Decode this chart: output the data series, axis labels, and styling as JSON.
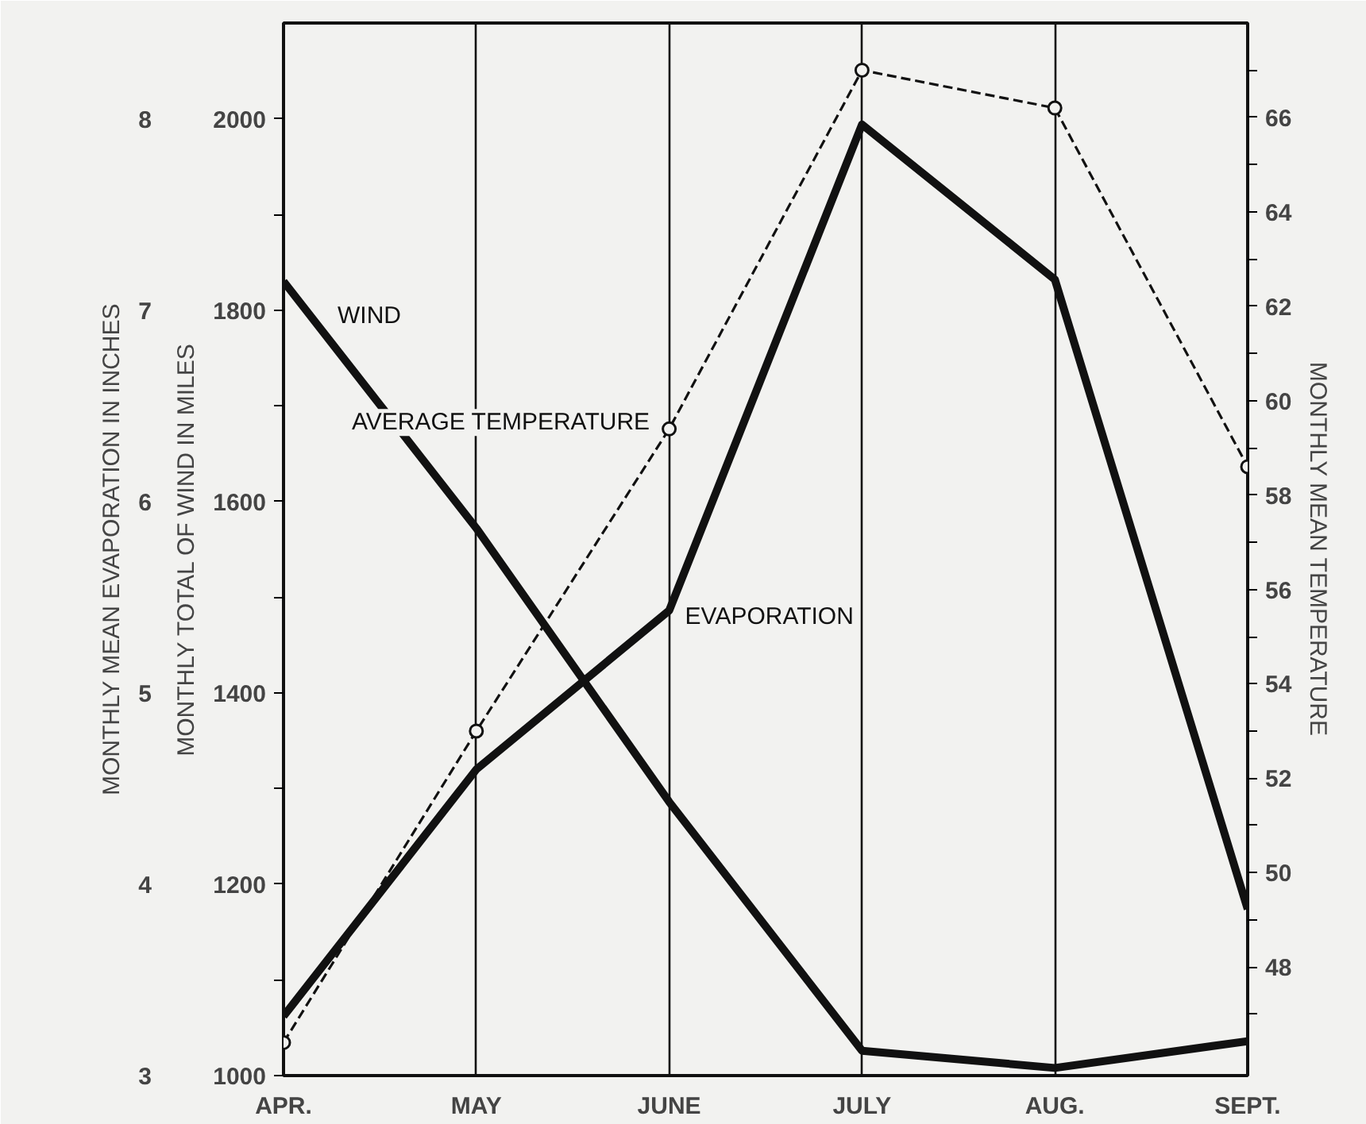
{
  "chart_data": {
    "type": "line",
    "categories": [
      "APR.",
      "MAY",
      "JUNE",
      "JULY",
      "AUG.",
      "SEPT."
    ],
    "ylabel": "MONTHLY TOTAL OF WIND IN MILES",
    "y2label": "MONTHLY MEAN TEMPERATURE",
    "y3label": "MONTHLY MEAN EVAPORATION IN INCHES",
    "ylim": [
      1000,
      2100
    ],
    "yticks": [
      1000,
      {
        "value": 1100,
        "label": null
      },
      1200,
      {
        "value": 1300,
        "label": null
      },
      1400,
      {
        "value": 1500,
        "label": null
      },
      1600,
      {
        "value": 1700,
        "label": null
      },
      1800,
      {
        "value": 1900,
        "label": null
      },
      2000
    ],
    "y2lim": [
      45.7,
      68
    ],
    "y2ticks": [
      {
        "value": 47,
        "label": null
      },
      48,
      {
        "value": 49,
        "label": null
      },
      50,
      {
        "value": 51,
        "label": null
      },
      52,
      {
        "value": 53,
        "label": null
      },
      54,
      {
        "value": 55,
        "label": null
      },
      56,
      {
        "value": 57,
        "label": null
      },
      58,
      {
        "value": 59,
        "label": null
      },
      60,
      {
        "value": 61,
        "label": null
      },
      62,
      {
        "value": 63,
        "label": null
      },
      64,
      {
        "value": 65,
        "label": null
      },
      66,
      {
        "value": 67,
        "label": null
      }
    ],
    "y3lim": [
      3,
      8.5
    ],
    "y3ticks": [
      3,
      4,
      5,
      6,
      7,
      8
    ],
    "grid": "x",
    "series": [
      {
        "name": "WIND",
        "color": "#111111",
        "axis": "y",
        "line_style": "solid",
        "values": [
          1830,
          1572,
          1286,
          1026,
          1008,
          1036
        ]
      },
      {
        "name": "EVAPORATION",
        "color": "#111111",
        "axis": "y3",
        "line_style": "solid",
        "values": [
          3.31,
          4.6,
          5.43,
          7.97,
          7.16,
          3.87
        ]
      },
      {
        "name": "AVERAGE TEMPERATURE",
        "color": "#111111",
        "axis": "y2",
        "line_style": "dashed",
        "marker": "circle",
        "values": [
          46.4,
          53.0,
          59.4,
          67.0,
          66.2,
          58.6
        ]
      }
    ]
  }
}
